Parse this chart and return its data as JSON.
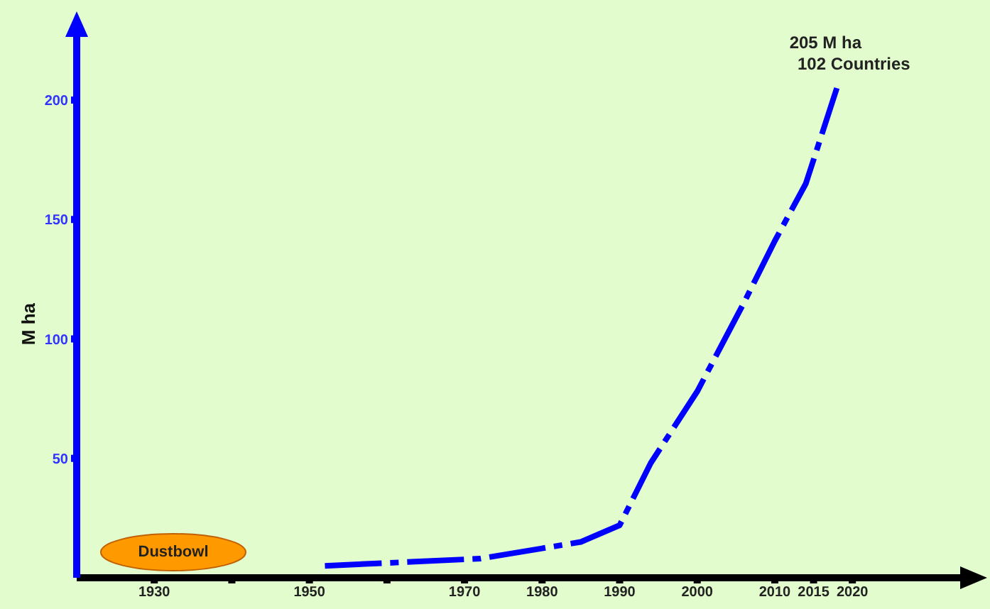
{
  "chart_data": {
    "type": "line",
    "ylabel": "M ha",
    "x": [
      1952,
      1972,
      1985,
      1990,
      1994,
      2000,
      2006,
      2010,
      2014,
      2018
    ],
    "series": [
      {
        "color": "#0000ff",
        "values": [
          5,
          8,
          15,
          22,
          48,
          78,
          115,
          141,
          165,
          205
        ]
      }
    ],
    "xlim": [
      1920,
      2035
    ],
    "xticks": [
      1930,
      {
        "value": 1940,
        "label": null
      },
      1950,
      {
        "value": 1960,
        "label": null
      },
      1970,
      1980,
      1990,
      2000,
      2010,
      2015,
      2020
    ],
    "ylim": [
      0,
      230
    ],
    "yticks": [
      50,
      100,
      150,
      200
    ],
    "line_style": "dashed",
    "annotations": [
      {
        "text": "205 M ha\n102 Countries",
        "x": 2018,
        "y": 205
      },
      "Dustbowl"
    ]
  }
}
